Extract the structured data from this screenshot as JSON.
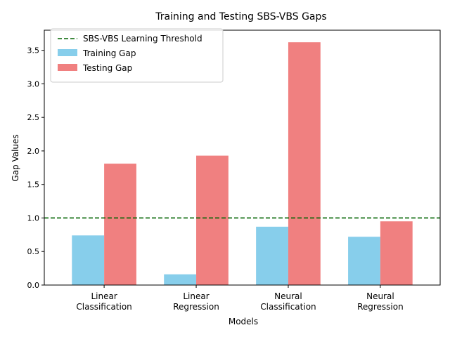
{
  "chart_data": {
    "type": "bar",
    "title": "Training and Testing SBS-VBS Gaps",
    "xlabel": "Models",
    "ylabel": "Gap Values",
    "categories": [
      [
        "Linear",
        "Classification"
      ],
      [
        "Linear",
        "Regression"
      ],
      [
        "Neural",
        "Classification"
      ],
      [
        "Neural",
        "Regression"
      ]
    ],
    "series": [
      {
        "name": "Training Gap",
        "color": "#87CEEB",
        "values": [
          0.74,
          0.16,
          0.87,
          0.72
        ]
      },
      {
        "name": "Testing Gap",
        "color": "#F08080",
        "values": [
          1.81,
          1.93,
          3.62,
          0.95
        ]
      }
    ],
    "threshold": {
      "name": "SBS-VBS Learning Threshold",
      "value": 1.0,
      "color": "#006400"
    },
    "ylim": [
      0,
      3.8
    ],
    "yticks": [
      0.0,
      0.5,
      1.0,
      1.5,
      2.0,
      2.5,
      3.0,
      3.5
    ],
    "legend_position": "top-left",
    "grid": false
  }
}
